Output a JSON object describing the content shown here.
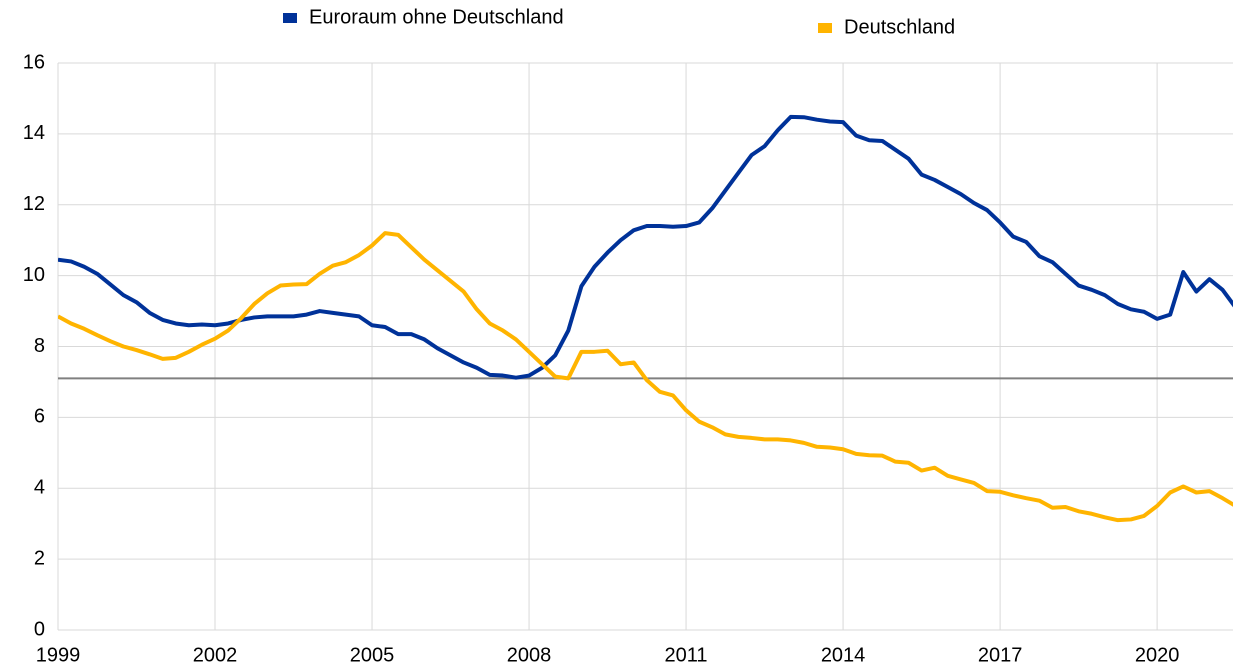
{
  "chart_data": {
    "type": "line",
    "x": [
      1999,
      1999.25,
      1999.5,
      1999.75,
      2000,
      2000.25,
      2000.5,
      2000.75,
      2001,
      2001.25,
      2001.5,
      2001.75,
      2002,
      2002.25,
      2002.5,
      2002.75,
      2003,
      2003.25,
      2003.5,
      2003.75,
      2004,
      2004.25,
      2004.5,
      2004.75,
      2005,
      2005.25,
      2005.5,
      2005.75,
      2006,
      2006.25,
      2006.5,
      2006.75,
      2007,
      2007.25,
      2007.5,
      2007.75,
      2008,
      2008.25,
      2008.5,
      2008.75,
      2009,
      2009.25,
      2009.5,
      2009.75,
      2010,
      2010.25,
      2010.5,
      2010.75,
      2011,
      2011.25,
      2011.5,
      2011.75,
      2012,
      2012.25,
      2012.5,
      2012.75,
      2013,
      2013.25,
      2013.5,
      2013.75,
      2014,
      2014.25,
      2014.5,
      2014.75,
      2015,
      2015.25,
      2015.5,
      2015.75,
      2016,
      2016.25,
      2016.5,
      2016.75,
      2017,
      2017.25,
      2017.5,
      2017.75,
      2018,
      2018.25,
      2018.5,
      2018.75,
      2019,
      2019.25,
      2019.5,
      2019.75,
      2020,
      2020.25,
      2020.5,
      2020.75,
      2021,
      2021.25,
      2021.5
    ],
    "series": [
      {
        "name": "Euroraum ohne Deutschland",
        "color": "#003299",
        "values": [
          10.45,
          10.4,
          10.25,
          10.05,
          9.75,
          9.45,
          9.25,
          8.95,
          8.75,
          8.65,
          8.6,
          8.62,
          8.6,
          8.65,
          8.75,
          8.82,
          8.85,
          8.85,
          8.85,
          8.9,
          9.0,
          8.95,
          8.9,
          8.85,
          8.6,
          8.55,
          8.35,
          8.35,
          8.2,
          7.95,
          7.75,
          7.55,
          7.4,
          7.2,
          7.18,
          7.12,
          7.18,
          7.4,
          7.75,
          8.45,
          9.7,
          10.25,
          10.65,
          11.0,
          11.28,
          11.4,
          11.4,
          11.38,
          11.4,
          11.5,
          11.9,
          12.4,
          12.9,
          13.4,
          13.65,
          14.1,
          14.48,
          14.47,
          14.4,
          14.35,
          14.33,
          13.95,
          13.82,
          13.8,
          13.55,
          13.3,
          12.85,
          12.7,
          12.5,
          12.3,
          12.05,
          11.85,
          11.5,
          11.1,
          10.95,
          10.55,
          10.38,
          10.05,
          9.72,
          9.6,
          9.45,
          9.2,
          9.05,
          8.98,
          8.78,
          8.9,
          10.1,
          9.55,
          9.9,
          9.6,
          9.1
        ]
      },
      {
        "name": "Deutschland",
        "color": "#ffb400",
        "values": [
          8.85,
          8.65,
          8.5,
          8.32,
          8.15,
          8.0,
          7.9,
          7.78,
          7.65,
          7.68,
          7.85,
          8.05,
          8.22,
          8.45,
          8.8,
          9.2,
          9.5,
          9.72,
          9.75,
          9.76,
          10.05,
          10.28,
          10.38,
          10.58,
          10.85,
          11.2,
          11.15,
          10.8,
          10.45,
          10.15,
          9.85,
          9.55,
          9.05,
          8.65,
          8.45,
          8.2,
          7.85,
          7.5,
          7.15,
          7.1,
          7.85,
          7.85,
          7.88,
          7.5,
          7.55,
          7.05,
          6.72,
          6.62,
          6.2,
          5.88,
          5.72,
          5.52,
          5.45,
          5.42,
          5.38,
          5.38,
          5.35,
          5.28,
          5.17,
          5.15,
          5.1,
          4.97,
          4.93,
          4.92,
          4.75,
          4.72,
          4.5,
          4.58,
          4.35,
          4.25,
          4.15,
          3.92,
          3.9,
          3.8,
          3.72,
          3.65,
          3.45,
          3.47,
          3.35,
          3.28,
          3.18,
          3.1,
          3.12,
          3.22,
          3.5,
          3.88,
          4.05,
          3.88,
          3.92,
          3.72,
          3.5
        ]
      }
    ],
    "reference_line": 7.1,
    "xlim": [
      1999,
      2021.45
    ],
    "xticks": [
      1999,
      2002,
      2005,
      2008,
      2011,
      2014,
      2017,
      2020
    ],
    "ylim": [
      0,
      16
    ],
    "yticks": [
      0,
      2,
      4,
      6,
      8,
      10,
      12,
      14,
      16
    ],
    "grid": true,
    "legend": "top"
  }
}
